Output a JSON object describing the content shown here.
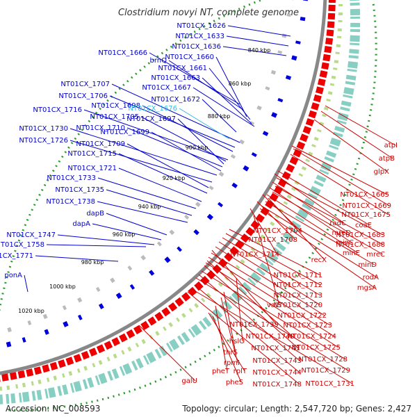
{
  "title": "Clostridium novyi NT, complete genome",
  "footer": {
    "accession": "Accession: NC_008593",
    "summary": "Topology: circular; Length: 2,547,720 bp; Genes: 2,427"
  },
  "colors": {
    "forward_label": "#0000cc",
    "reverse_label": "#cc0000",
    "highlight_label": "#33bbdd",
    "backbone": "#888888",
    "gc_dots": "#2a9a2a",
    "forward_arrow": "#0000dd",
    "reverse_arrow": "#ee0000"
  },
  "ticks": [
    "840 kbp",
    "860 kbp",
    "880 kbp",
    "900 kbp",
    "920 kbp",
    "940 kbp",
    "960 kbp",
    "980 kbp",
    "1000 kbp",
    "1020 kbp"
  ],
  "forward_labels": [
    "NT01CX_1626",
    "NT01CX_1633",
    "NT01CX_1636",
    "NT01CX_1666",
    "brnQ",
    "NT01CX_1660",
    "NT01CX_1661",
    "NT01CX_1663",
    "NT01CX_1667",
    "NT01CX_1707",
    "NT01CX_1706",
    "NT01CX_1672",
    "NT01CX_1698",
    "NT01CX_1676",
    "NT01CX_1716",
    "NT01CX_1705",
    "NT01CX_1697",
    "NT01CX_1710",
    "NT01CX_1730",
    "NT01CX_1699",
    "NT01CX_1726",
    "NT01CX_1709",
    "NT01CX_1715",
    "NT01CX_1721",
    "NT01CX_1733",
    "NT01CX_1735",
    "NT01CX_1738",
    "dapB",
    "dapA",
    "NT01CX_1747",
    "NT01CX_1758",
    "NT01CX_1771",
    "ponA"
  ],
  "reverse_labels": [
    "atpI",
    "atpB",
    "glpX",
    "NT01CX_1665",
    "NT01CX_1669",
    "NT01CX_1675",
    "radC",
    "coaE",
    "NT01CX_1683",
    "NT01CX_1704",
    "mreD",
    "NT01CX_1688",
    "NT01CX_1708",
    "minC",
    "mreC",
    "minE",
    "NT01CX_1714",
    "recX",
    "minD",
    "rodA",
    "mgsA",
    "NT01CX_1711",
    "NT01CX_1712",
    "NT01CX_1713",
    "valS",
    "NT01CX_1720",
    "NT01CX_1722",
    "NT01CX_1739",
    "NT01CX_1723",
    "NT01CX_1724",
    "NT01CX_1740",
    "hslO",
    "NT01CX_1725",
    "NT01CX_1741",
    "thrS",
    "NT01CX_1728",
    "rpmI",
    "NT01CX_1743",
    "NT01CX_1729",
    "pheT",
    "rplT",
    "NT01CX_1744",
    "NT01CX_1731",
    "galU",
    "pheS",
    "NT01CX_1748"
  ]
}
